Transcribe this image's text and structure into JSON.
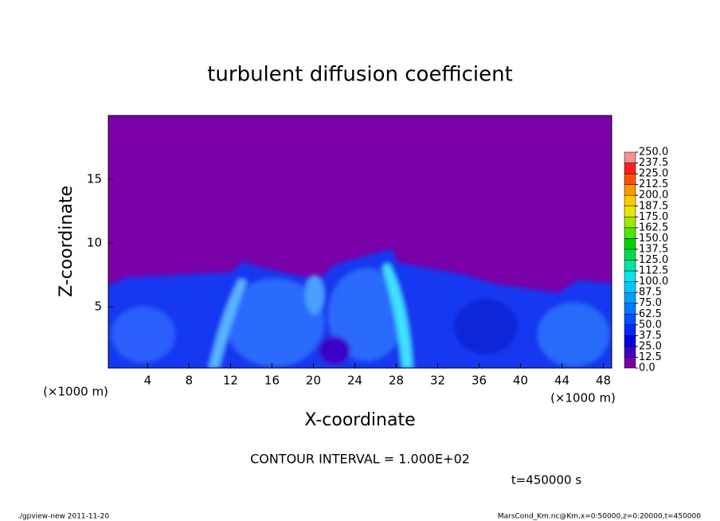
{
  "chart_data": {
    "type": "contour",
    "title": "turbulent diffusion coefficient",
    "x_label": "X-coordinate",
    "y_label": "Z-coordinate",
    "x_unit": "(×1000 m)",
    "xlim": [
      0.2,
      48.8
    ],
    "xticks": [
      4,
      8,
      12,
      16,
      20,
      24,
      28,
      32,
      36,
      40,
      44,
      48
    ],
    "ylim": [
      0.2,
      20
    ],
    "yticks": [
      5,
      10,
      15
    ],
    "background": "#7a00a8",
    "colorbar": {
      "levels": [
        {
          "value": 0,
          "label": "0.0"
        },
        {
          "value": 12.5,
          "label": "12.5"
        },
        {
          "value": 25,
          "label": "25.0"
        },
        {
          "value": 37.5,
          "label": "37.5"
        },
        {
          "value": 50,
          "label": "50.0"
        },
        {
          "value": 62.5,
          "label": "62.5"
        },
        {
          "value": 75,
          "label": "75.0"
        },
        {
          "value": 87.5,
          "label": "87.5"
        },
        {
          "value": 100,
          "label": "100.0"
        },
        {
          "value": 112.5,
          "label": "112.5"
        },
        {
          "value": 125,
          "label": "125.0"
        },
        {
          "value": 137.5,
          "label": "137.5"
        },
        {
          "value": 150,
          "label": "150.0"
        },
        {
          "value": 162.5,
          "label": "162.5"
        },
        {
          "value": 175,
          "label": "175.0"
        },
        {
          "value": 187.5,
          "label": "187.5"
        },
        {
          "value": 200,
          "label": "200.0"
        },
        {
          "value": 212.5,
          "label": "212.5"
        },
        {
          "value": 225,
          "label": "225.0"
        },
        {
          "value": 237.5,
          "label": "237.5"
        },
        {
          "value": 250,
          "label": "250.0"
        }
      ],
      "colors": [
        "#7a00a8",
        "#3c00c8",
        "#0000e0",
        "#0028ff",
        "#0050ff",
        "#0078ff",
        "#00a0ff",
        "#00c8ff",
        "#00e6e6",
        "#00e6a0",
        "#00dc50",
        "#00d200",
        "#50e600",
        "#a0e600",
        "#e6e600",
        "#ffc800",
        "#ff9600",
        "#ff5000",
        "#ff1e1e",
        "#f49090"
      ]
    },
    "contour_interval": "CONTOUR INTERVAL = 1.000E+02",
    "time": "t=450000 s"
  },
  "footer": {
    "left": "./gpview-new   2011-11-20",
    "right": "MarsCond_Km.nc@Km,x=0:50000,z=0:20000,t=450000"
  }
}
